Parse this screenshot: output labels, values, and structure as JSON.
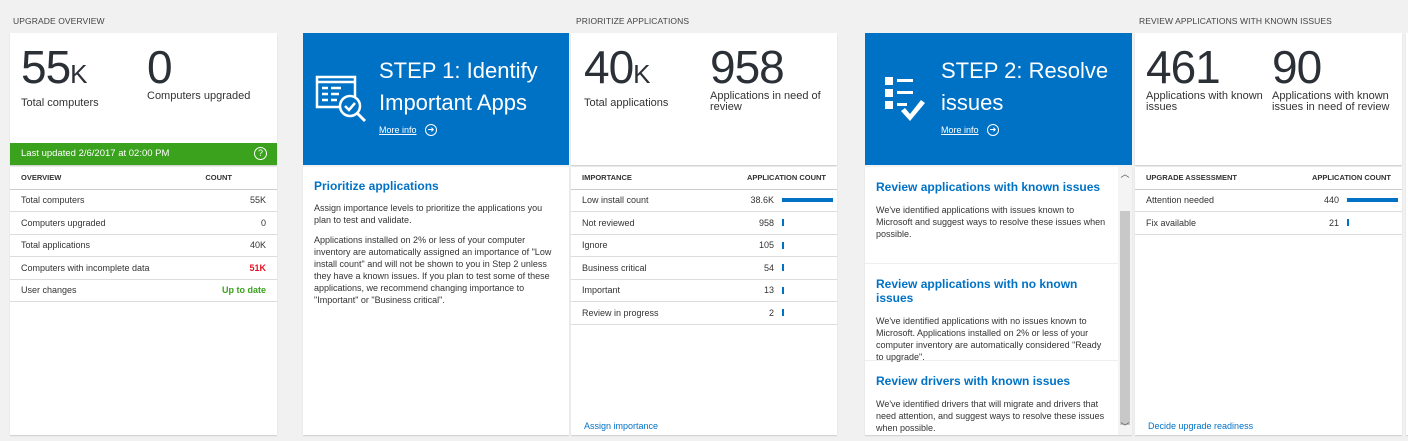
{
  "overview": {
    "section": "UPGRADE OVERVIEW",
    "stats": [
      {
        "value": "55",
        "unit": "K",
        "label": "Total computers"
      },
      {
        "value": "0",
        "unit": "",
        "label": "Computers upgraded"
      }
    ],
    "last_updated": "Last updated 2/6/2017 at 02:00 PM",
    "table": {
      "headers": [
        "OVERVIEW",
        "COUNT"
      ],
      "rows": [
        {
          "label": "Total computers",
          "value": "55K"
        },
        {
          "label": "Computers upgraded",
          "value": "0"
        },
        {
          "label": "Total applications",
          "value": "40K"
        },
        {
          "label": "Computers with incomplete data",
          "value": "51K",
          "color": "#e81123"
        },
        {
          "label": "User changes",
          "value": "Up to date",
          "color": "#3aa21d"
        }
      ]
    }
  },
  "step1": {
    "title": "STEP 1: Identify Important Apps",
    "more_info": "More info",
    "icon": "app-list-search-check-icon",
    "heading": "Prioritize applications",
    "p1": "Assign importance levels to prioritize the applications you plan to test and validate.",
    "p2": "Applications installed on 2% or less of your computer inventory are automatically assigned an importance of \"Low install count\" and will not be shown to you in Step 2 unless they have a known issues. If you plan to test some of these applications, we recommend changing importance to \"Important\" or \"Business critical\"."
  },
  "prioritize": {
    "section": "PRIORITIZE APPLICATIONS",
    "stats": [
      {
        "value": "40",
        "unit": "K",
        "label": "Total applications"
      },
      {
        "value": "958",
        "unit": "",
        "label": "Applications in need of review"
      }
    ],
    "table": {
      "headers": [
        "IMPORTANCE",
        "APPLICATION COUNT"
      ],
      "rows": [
        {
          "label": "Low install count",
          "value": "38.6K",
          "n": 38600
        },
        {
          "label": "Not reviewed",
          "value": "958",
          "n": 958
        },
        {
          "label": "Ignore",
          "value": "105",
          "n": 105
        },
        {
          "label": "Business critical",
          "value": "54",
          "n": 54
        },
        {
          "label": "Important",
          "value": "13",
          "n": 13
        },
        {
          "label": "Review in progress",
          "value": "2",
          "n": 2
        }
      ]
    },
    "link": "Assign importance"
  },
  "step2": {
    "title": "STEP 2: Resolve issues",
    "more_info": "More info",
    "icon": "checklist-icon",
    "items": [
      {
        "heading": "Review applications with known issues",
        "text": "We've identified applications with issues known to Microsoft and suggest ways to resolve these issues when possible."
      },
      {
        "heading": "Review applications with no known issues",
        "text": "We've identified applications with no issues known to Microsoft. Applications installed on 2% or less of your computer inventory are automatically considered \"Ready to upgrade\"."
      },
      {
        "heading": "Review drivers with known issues",
        "text": "We've identified drivers that will migrate and drivers that need attention, and suggest ways to resolve these issues when possible."
      }
    ]
  },
  "known": {
    "section": "REVIEW APPLICATIONS WITH KNOWN ISSUES",
    "stats": [
      {
        "value": "461",
        "unit": "",
        "label": "Applications with known issues"
      },
      {
        "value": "90",
        "unit": "",
        "label": "Applications with known issues in need of review"
      }
    ],
    "table": {
      "headers": [
        "UPGRADE ASSESSMENT",
        "APPLICATION COUNT"
      ],
      "rows": [
        {
          "label": "Attention needed",
          "value": "440",
          "n": 440
        },
        {
          "label": "Fix available",
          "value": "21",
          "n": 21
        }
      ]
    },
    "link": "Decide upgrade readiness"
  },
  "colors": {
    "accent": "#0072c6",
    "success": "#3aa21d",
    "alert": "#e81123"
  }
}
